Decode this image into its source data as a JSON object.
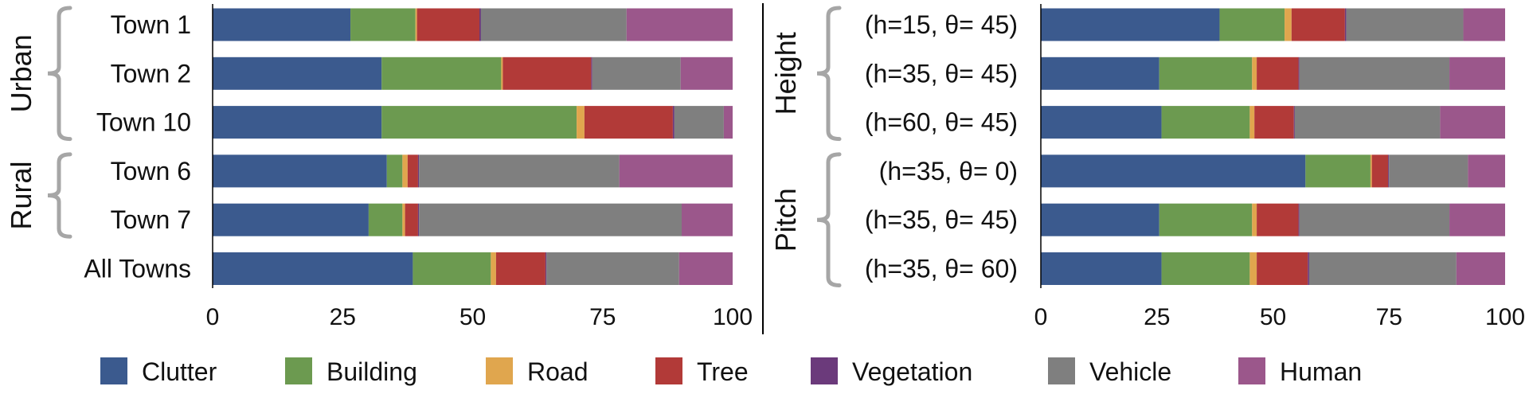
{
  "colors": {
    "Clutter": "#3b5a8e",
    "Building": "#6c9a50",
    "Road": "#e0a64e",
    "Tree": "#b23a38",
    "Vegetation": "#6b3a7b",
    "Vehicle": "#7f7f7f",
    "Human": "#9b578b"
  },
  "legend": {
    "items": [
      "Clutter",
      "Building",
      "Road",
      "Tree",
      "Vegetation",
      "Vehicle",
      "Human"
    ]
  },
  "chart_data": [
    {
      "type": "bar",
      "orientation": "horizontal",
      "stacked": true,
      "title": "",
      "xlabel": "",
      "xlim": [
        0,
        100
      ],
      "xticks": [
        "0",
        "25",
        "50",
        "75",
        "100"
      ],
      "categories": [
        "Town 1",
        "Town 2",
        "Town 10",
        "Town 6",
        "Town 7",
        "All Towns"
      ],
      "groups": [
        {
          "label": "Urban",
          "categories": [
            "Town 1",
            "Town 2",
            "Town 10"
          ]
        },
        {
          "label": "Rural",
          "categories": [
            "Town 6",
            "Town 7"
          ]
        }
      ],
      "series": [
        {
          "name": "Clutter",
          "values": [
            26.5,
            32.5,
            32.5,
            33.5,
            30,
            38.5
          ]
        },
        {
          "name": "Building",
          "values": [
            12.5,
            23,
            37.5,
            3,
            6.5,
            15
          ]
        },
        {
          "name": "Road",
          "values": [
            0.3,
            0.3,
            1.5,
            1,
            0.5,
            1
          ]
        },
        {
          "name": "Tree",
          "values": [
            12,
            17,
            17,
            2,
            2.5,
            9.5
          ]
        },
        {
          "name": "Vegetation",
          "values": [
            0.3,
            0.2,
            0.3,
            0.2,
            0.2,
            0.2
          ]
        },
        {
          "name": "Vehicle",
          "values": [
            28,
            17,
            9.5,
            38.5,
            50.5,
            25.5
          ]
        },
        {
          "name": "Human",
          "values": [
            20.4,
            10,
            1.7,
            21.8,
            9.8,
            10.3
          ]
        }
      ]
    },
    {
      "type": "bar",
      "orientation": "horizontal",
      "stacked": true,
      "title": "",
      "xlabel": "",
      "xlim": [
        0,
        100
      ],
      "xticks": [
        "0",
        "25",
        "50",
        "75",
        "100"
      ],
      "categories": [
        "(h=15, θ= 45)",
        "(h=35, θ= 45)",
        "(h=60, θ= 45)",
        "(h=35, θ= 0)",
        "(h=35, θ= 45)",
        "(h=35, θ= 60)"
      ],
      "groups": [
        {
          "label": "Height",
          "categories": [
            "(h=15, θ= 45)",
            "(h=35, θ= 45)",
            "(h=60, θ= 45)"
          ]
        },
        {
          "label": "Pitch",
          "categories": [
            "(h=35, θ= 0)",
            "(h=35, θ= 45)",
            "(h=35, θ= 60)"
          ]
        }
      ],
      "series": [
        {
          "name": "Clutter",
          "values": [
            38.5,
            25.5,
            26,
            57,
            25.5,
            26
          ]
        },
        {
          "name": "Building",
          "values": [
            14,
            20,
            19,
            14,
            20,
            19
          ]
        },
        {
          "name": "Road",
          "values": [
            1.5,
            1,
            1,
            0.3,
            1,
            1.5
          ]
        },
        {
          "name": "Tree",
          "values": [
            11.5,
            9,
            8.5,
            3.5,
            9,
            11
          ]
        },
        {
          "name": "Vegetation",
          "values": [
            0.3,
            0.2,
            0.2,
            0.2,
            0.2,
            0.3
          ]
        },
        {
          "name": "Vehicle",
          "values": [
            25.2,
            32.3,
            31.3,
            17,
            32.3,
            31.7
          ]
        },
        {
          "name": "Human",
          "values": [
            9,
            12,
            14,
            8,
            12,
            10.5
          ]
        }
      ]
    }
  ]
}
